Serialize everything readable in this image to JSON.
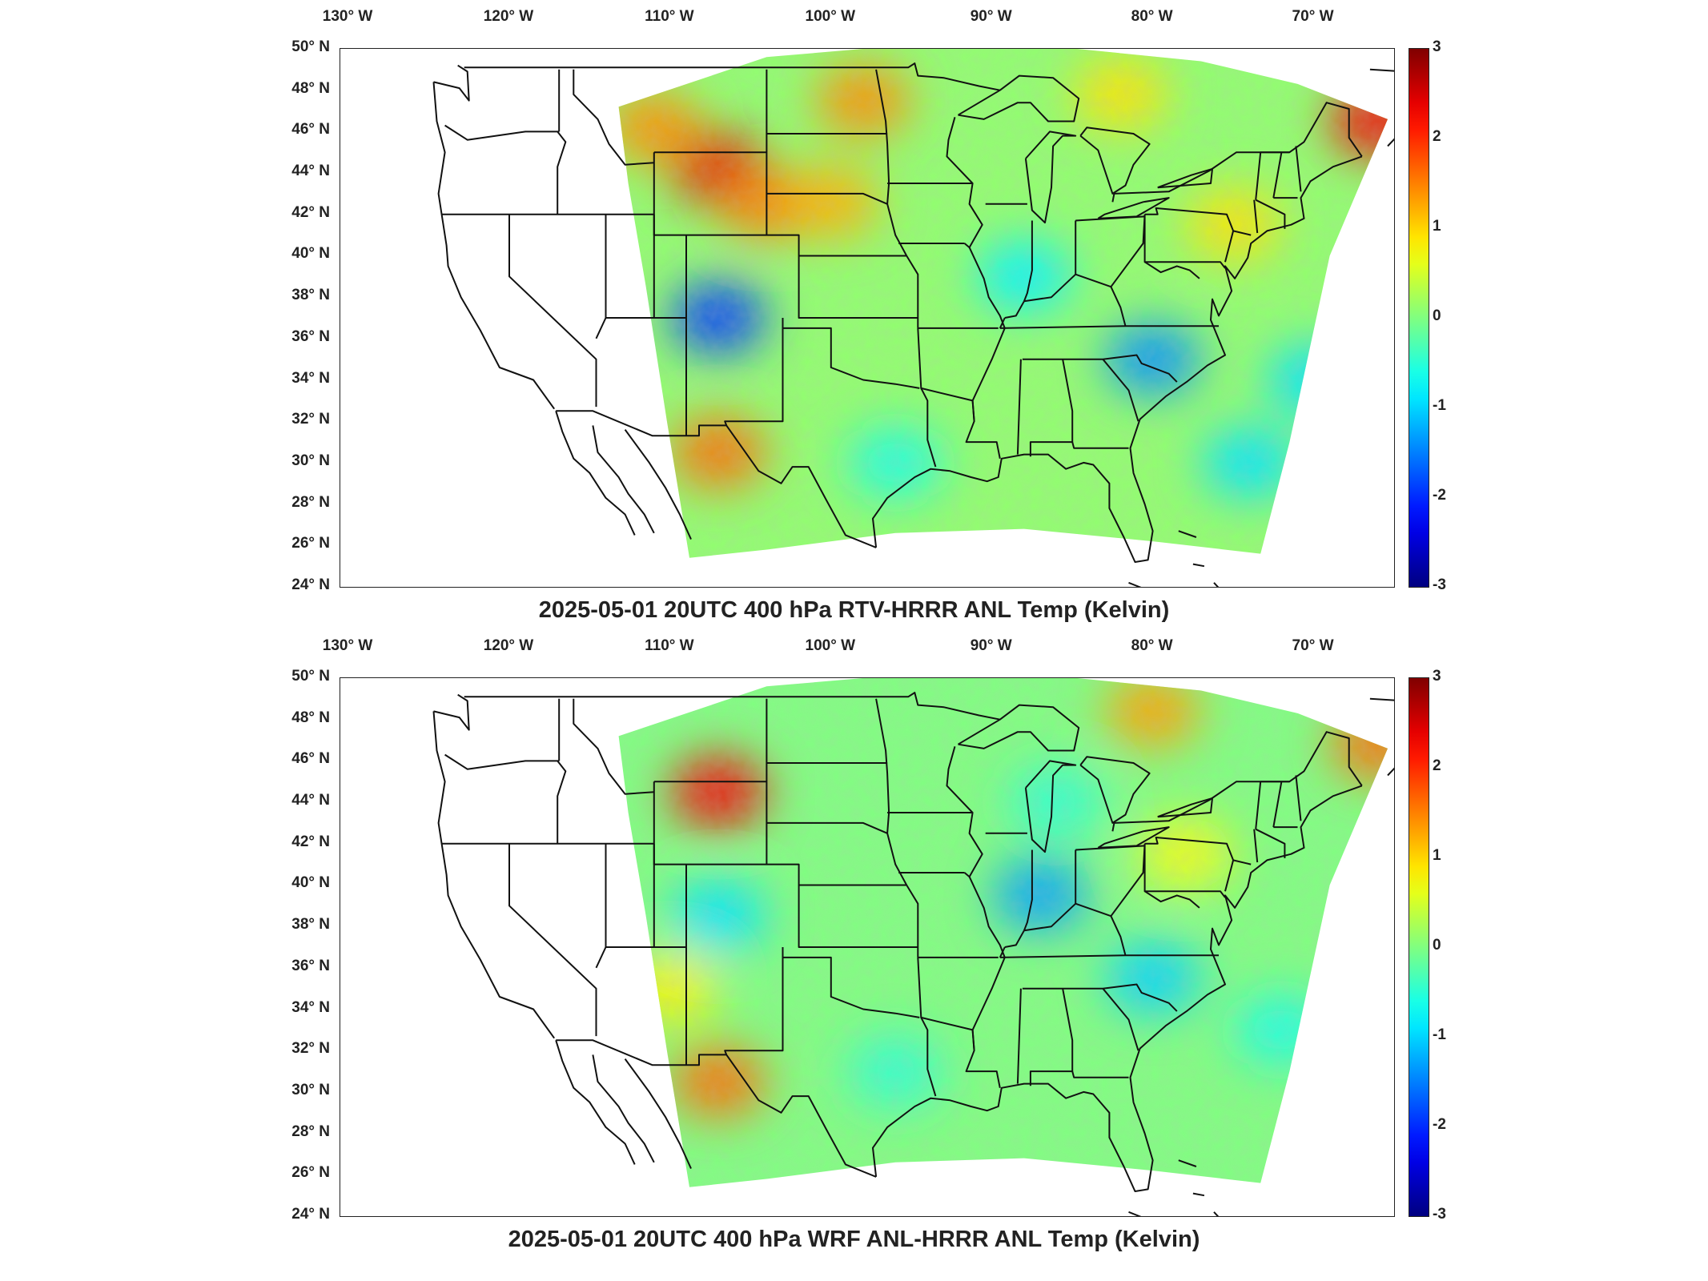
{
  "panels": [
    {
      "title": "2025-05-01 20UTC 400 hPa RTV-HRRR ANL Temp (Kelvin)",
      "hot_spots": [
        {
          "lon": -107,
          "lat": 44.2,
          "value": 2.4
        },
        {
          "lon": -104,
          "lat": 42.5,
          "value": 1.5
        },
        {
          "lon": -111,
          "lat": 46.2,
          "value": 1.4
        },
        {
          "lon": -98,
          "lat": 47.5,
          "value": 1.4
        },
        {
          "lon": -66,
          "lat": 46.5,
          "value": 2.3
        },
        {
          "lon": -107,
          "lat": 30.5,
          "value": 1.6
        },
        {
          "lon": -100,
          "lat": 42.6,
          "value": 1.2
        },
        {
          "lon": -75,
          "lat": 41.5,
          "value": 0.9
        },
        {
          "lon": -82,
          "lat": 47.8,
          "value": 0.9
        }
      ],
      "cold_spots": [
        {
          "lon": -107,
          "lat": 37,
          "value": -1.9
        },
        {
          "lon": -80,
          "lat": 35,
          "value": -1.4
        },
        {
          "lon": -70,
          "lat": 34,
          "value": -0.9
        },
        {
          "lon": -74,
          "lat": 30,
          "value": -0.9
        },
        {
          "lon": -88,
          "lat": 39,
          "value": -0.8
        },
        {
          "lon": -96,
          "lat": 30,
          "value": -0.6
        }
      ],
      "base_value": 0.1
    },
    {
      "title": "2025-05-01 20UTC 400 hPa WRF ANL-HRRR ANL Temp (Kelvin)",
      "hot_spots": [
        {
          "lon": -107,
          "lat": 44.5,
          "value": 2.3
        },
        {
          "lon": -66,
          "lat": 46.8,
          "value": 1.6
        },
        {
          "lon": -80,
          "lat": 48.4,
          "value": 1.3
        },
        {
          "lon": -107,
          "lat": 30.5,
          "value": 1.6
        },
        {
          "lon": -110,
          "lat": 35,
          "value": 0.8
        },
        {
          "lon": -78,
          "lat": 41.5,
          "value": 0.7
        }
      ],
      "cold_spots": [
        {
          "lon": -87,
          "lat": 39.5,
          "value": -1.3
        },
        {
          "lon": -80,
          "lat": 35.5,
          "value": -1.0
        },
        {
          "lon": -72,
          "lat": 33,
          "value": -0.6
        },
        {
          "lon": -107,
          "lat": 38.5,
          "value": -0.9
        },
        {
          "lon": -96,
          "lat": 31,
          "value": -0.5
        },
        {
          "lon": -86,
          "lat": 44,
          "value": -0.5
        }
      ],
      "base_value": 0.0
    }
  ],
  "axes": {
    "lon_labels": [
      "130° W",
      "120° W",
      "110° W",
      "100° W",
      "90° W",
      "80° W",
      "70° W"
    ],
    "lon_values": [
      -130,
      -120,
      -110,
      -100,
      -90,
      -80,
      -70
    ],
    "lat_labels": [
      "50° N",
      "48° N",
      "46° N",
      "44° N",
      "42° N",
      "40° N",
      "38° N",
      "36° N",
      "34° N",
      "32° N",
      "30° N",
      "28° N",
      "26° N",
      "24° N"
    ],
    "lat_values": [
      50,
      48,
      46,
      44,
      42,
      40,
      38,
      36,
      34,
      32,
      30,
      28,
      26,
      24
    ],
    "lon_range": [
      -130.5,
      -65
    ],
    "lat_range": [
      24,
      50
    ]
  },
  "colorbar": {
    "colormap": "jet",
    "range": [
      -3,
      3
    ],
    "tick_labels": [
      "3",
      "2",
      "1",
      "0",
      "-1",
      "-2",
      "-3"
    ],
    "tick_values": [
      3,
      2,
      1,
      0,
      -1,
      -2,
      -3
    ]
  }
}
